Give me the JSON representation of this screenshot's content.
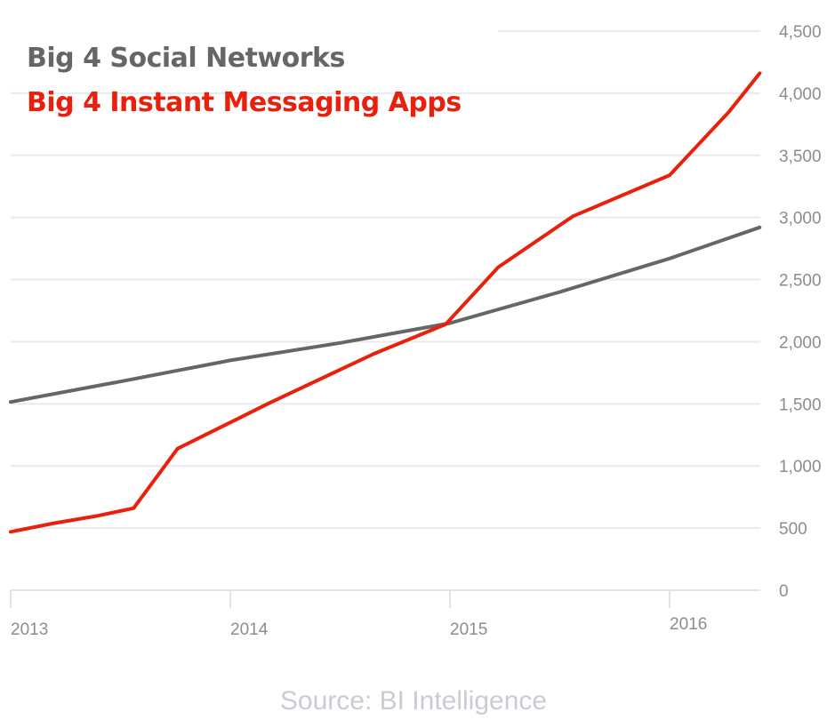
{
  "chart_data": {
    "type": "line",
    "title": "",
    "xlabel": "",
    "ylabel": "",
    "xlim": [
      2013,
      2016.41
    ],
    "ylim": [
      0,
      4500
    ],
    "y_ticks": [
      "0",
      "500",
      "1,000",
      "1,500",
      "2,000",
      "2,500",
      "3,000",
      "3,500",
      "4,000",
      "4,500"
    ],
    "y_tick_values": [
      0,
      500,
      1000,
      1500,
      2000,
      2500,
      3000,
      3500,
      4000,
      4500
    ],
    "x_ticks": [
      "2013",
      "2014",
      "2015",
      "2016"
    ],
    "x_tick_values": [
      2013,
      2014,
      2015,
      2016
    ],
    "grid": true,
    "legend_placement": "top-left",
    "series": [
      {
        "name": "Big 4 Social Networks",
        "color": "#666666",
        "x": [
          2013.0,
          2013.5,
          2014.0,
          2014.5,
          2015.0,
          2015.5,
          2016.0,
          2016.41
        ],
        "y": [
          1515,
          1680,
          1850,
          1990,
          2150,
          2400,
          2670,
          2920
        ]
      },
      {
        "name": "Big 4 Instant Messaging Apps",
        "color": "#e8200c",
        "x": [
          2013.0,
          2013.2,
          2013.4,
          2013.56,
          2013.66,
          2013.76,
          2014.0,
          2014.17,
          2014.65,
          2014.98,
          2015.22,
          2015.56,
          2016.0,
          2016.27,
          2016.41
        ],
        "y": [
          470,
          540,
          600,
          660,
          900,
          1140,
          1350,
          1500,
          1900,
          2140,
          2600,
          3010,
          3340,
          3850,
          4160
        ]
      }
    ]
  },
  "source": "Source: BI Intelligence"
}
